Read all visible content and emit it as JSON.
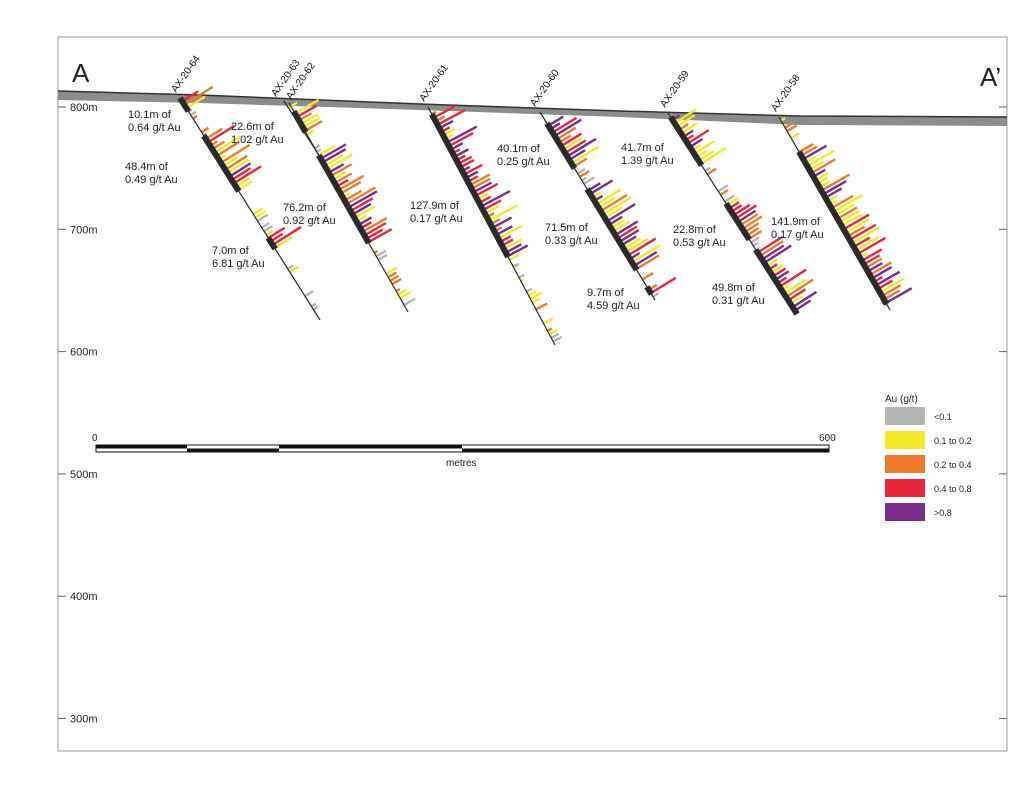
{
  "section": {
    "left_label": "A",
    "right_label": "A’"
  },
  "elevation": {
    "unit": "m",
    "ticks": [
      {
        "value": 800,
        "label": "800m"
      },
      {
        "value": 700,
        "label": "700m"
      },
      {
        "value": 600,
        "label": "600m"
      },
      {
        "value": 500,
        "label": "500m"
      },
      {
        "value": 400,
        "label": "400m"
      },
      {
        "value": 300,
        "label": "300m"
      }
    ]
  },
  "drillholes": [
    {
      "name": "AX-20-64",
      "intercepts": [
        {
          "text": [
            "10.1m of",
            "0.64 g/t Au"
          ]
        },
        {
          "text": [
            "48.4m of",
            "0.49 g/t Au"
          ]
        },
        {
          "text": [
            "7.0m of",
            "6.81 g/t Au"
          ]
        }
      ]
    },
    {
      "name": "AX-20-63",
      "intercepts": []
    },
    {
      "name": "AX-20-62",
      "intercepts": [
        {
          "text": [
            "22.6m of",
            "1.02 g/t Au"
          ]
        },
        {
          "text": [
            "76.2m of",
            "0.92 g/t Au"
          ]
        }
      ]
    },
    {
      "name": "AX-20-61",
      "intercepts": [
        {
          "text": [
            "127.9m of",
            "0.17 g/t Au"
          ]
        }
      ]
    },
    {
      "name": "AX-20-60",
      "intercepts": [
        {
          "text": [
            "40.1m of",
            "0.25 g/t Au"
          ]
        },
        {
          "text": [
            "71.5m of",
            "0.33 g/t Au"
          ]
        },
        {
          "text": [
            "9.7m of",
            "4.59 g/t Au"
          ]
        }
      ]
    },
    {
      "name": "AX-20-59",
      "intercepts": [
        {
          "text": [
            "41.7m of",
            "1.39 g/t Au"
          ]
        },
        {
          "text": [
            "22.8m of",
            "0.53 g/t Au"
          ]
        },
        {
          "text": [
            "49.8m of",
            "0.31 g/t Au"
          ]
        }
      ]
    },
    {
      "name": "AX-20-58",
      "intercepts": [
        {
          "text": [
            "141.9m of",
            "0.17 g/t Au"
          ]
        }
      ]
    }
  ],
  "scale_bar": {
    "start_label": "0",
    "end_label": "600",
    "unit_label": "metres"
  },
  "legend": {
    "title": "Au (g/t)",
    "items": [
      {
        "label": "<0.1",
        "color": "#b5b5b5"
      },
      {
        "label": "0.1 to 0.2",
        "color": "#f2ea28"
      },
      {
        "label": "0.2 to 0.4",
        "color": "#ef7a2e"
      },
      {
        "label": "0.4 to 0.8",
        "color": "#e8283a"
      },
      {
        "label": ">0.8",
        "color": "#7b2d8b"
      }
    ]
  },
  "colors": {
    "topography": "#8c8c8c",
    "drill_trace": "#2a2a2a",
    "intercept_bar": "#2a2a2a",
    "frame": "#9a9a9a",
    "gridline": "#c0c0c0"
  }
}
